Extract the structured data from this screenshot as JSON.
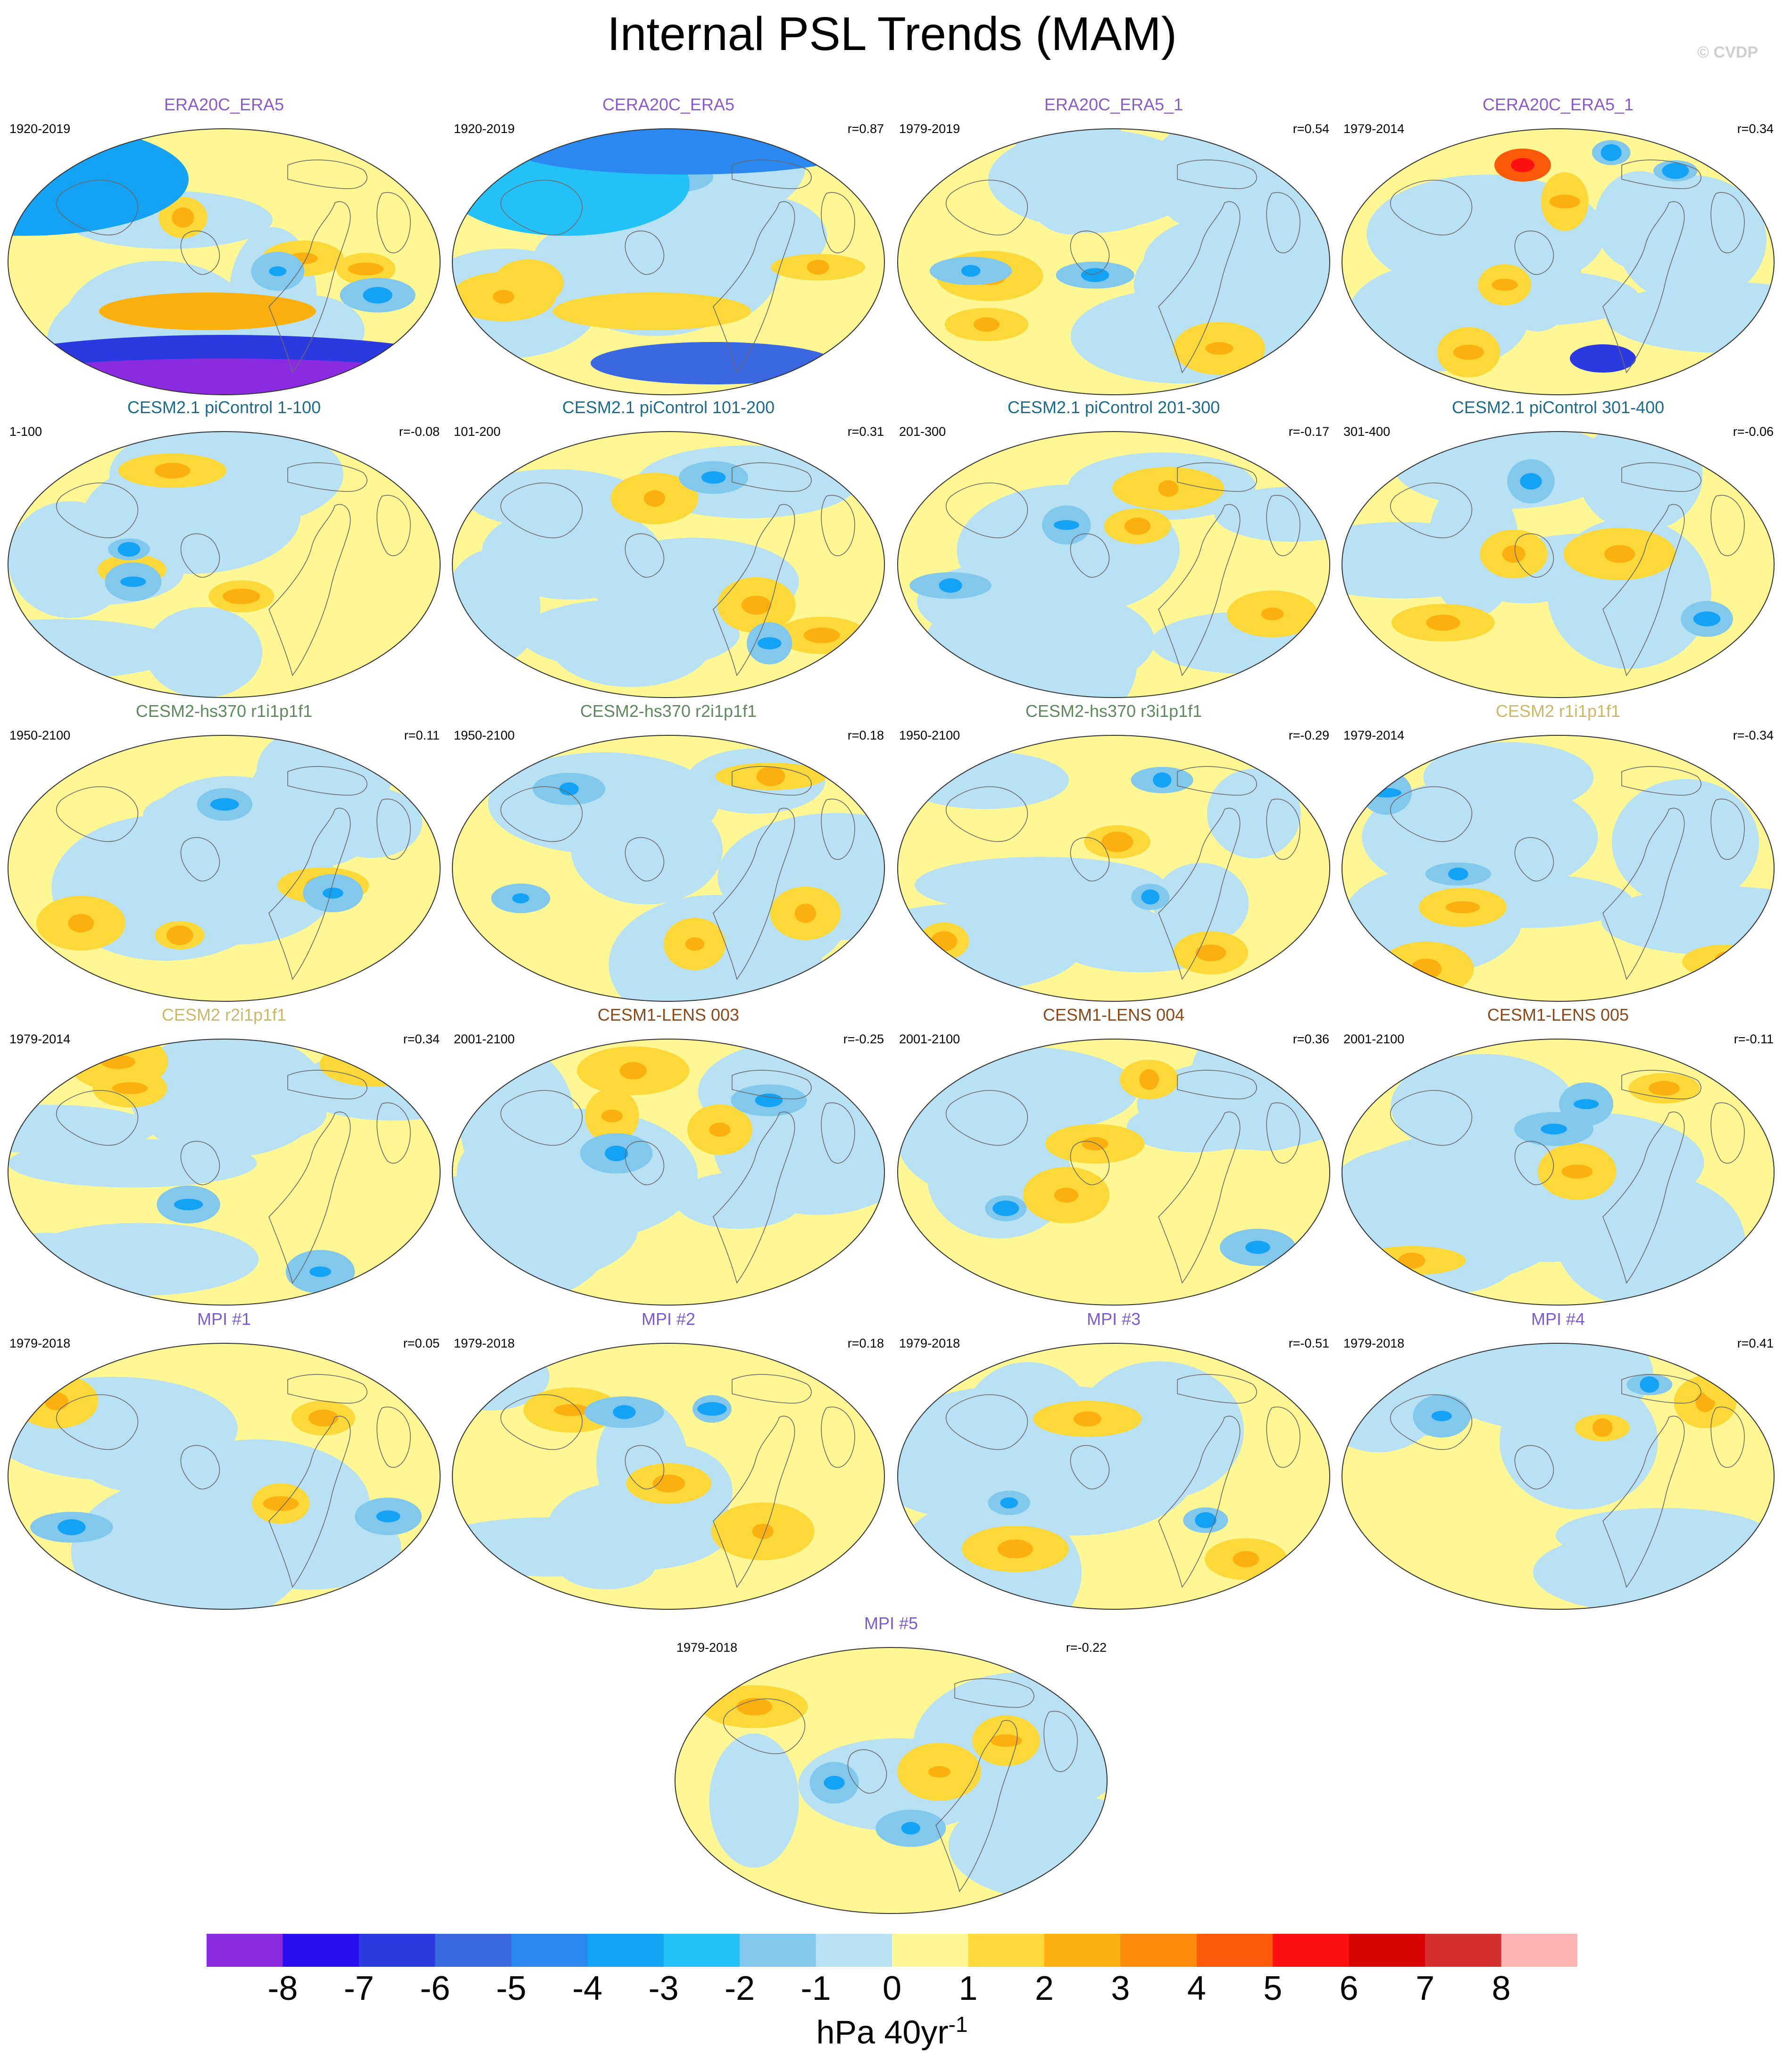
{
  "title": "Internal PSL Trends (MAM)",
  "copyright": "© CVDP",
  "colors": {
    "ERA": "#8a5cc9",
    "piControl": "#1c6b8a",
    "hs370": "#5c8a5c",
    "CESM2": "#c9b86a",
    "LENS": "#8a4a1c",
    "MPI": "#7c5cd6"
  },
  "chart_data": {
    "type": "map-grid",
    "panels": [
      {
        "name": "ERA20C_ERA5",
        "period": "1920-2019",
        "r": "",
        "group": "ERA",
        "icon": "1"
      },
      {
        "name": "CERA20C_ERA5",
        "period": "1920-2019",
        "r": "r=0.87",
        "group": "ERA",
        "icon": "2"
      },
      {
        "name": "ERA20C_ERA5_1",
        "period": "1979-2019",
        "r": "r=0.54",
        "group": "ERA",
        "icon": "3"
      },
      {
        "name": "CERA20C_ERA5_1",
        "period": "1979-2014",
        "r": "r=0.34",
        "group": "ERA",
        "icon": "4"
      },
      {
        "name": "CESM2.1 piControl 1-100",
        "period": "1-100",
        "r": "r=-0.08",
        "group": "piControl",
        "icon": "5"
      },
      {
        "name": "CESM2.1 piControl 101-200",
        "period": "101-200",
        "r": "r=0.31",
        "group": "piControl",
        "icon": "6"
      },
      {
        "name": "CESM2.1 piControl 201-300",
        "period": "201-300",
        "r": "r=-0.17",
        "group": "piControl",
        "icon": "7"
      },
      {
        "name": "CESM2.1 piControl 301-400",
        "period": "301-400",
        "r": "r=-0.06",
        "group": "piControl",
        "icon": "8"
      },
      {
        "name": "CESM2-hs370 r1i1p1f1",
        "period": "1950-2100",
        "r": "r=0.11",
        "group": "hs370",
        "icon": "9"
      },
      {
        "name": "CESM2-hs370 r2i1p1f1",
        "period": "1950-2100",
        "r": "r=0.18",
        "group": "hs370",
        "icon": "10"
      },
      {
        "name": "CESM2-hs370 r3i1p1f1",
        "period": "1950-2100",
        "r": "r=-0.29",
        "group": "hs370",
        "icon": "11"
      },
      {
        "name": "CESM2 r1i1p1f1",
        "period": "1979-2014",
        "r": "r=-0.34",
        "group": "CESM2",
        "icon": "12"
      },
      {
        "name": "CESM2 r2i1p1f1",
        "period": "1979-2014",
        "r": "r=0.34",
        "group": "CESM2",
        "icon": "13"
      },
      {
        "name": "CESM1-LENS 003",
        "period": "2001-2100",
        "r": "r=-0.25",
        "group": "LENS",
        "icon": "14"
      },
      {
        "name": "CESM1-LENS 004",
        "period": "2001-2100",
        "r": "r=0.36",
        "group": "LENS",
        "icon": "15"
      },
      {
        "name": "CESM1-LENS 005",
        "period": "2001-2100",
        "r": "r=-0.11",
        "group": "LENS",
        "icon": "16"
      },
      {
        "name": "MPI #1",
        "period": "1979-2018",
        "r": "r=0.05",
        "group": "MPI",
        "icon": "17"
      },
      {
        "name": "MPI #2",
        "period": "1979-2018",
        "r": "r=0.18",
        "group": "MPI",
        "icon": "18"
      },
      {
        "name": "MPI #3",
        "period": "1979-2018",
        "r": "r=-0.51",
        "group": "MPI",
        "icon": "19"
      },
      {
        "name": "MPI #4",
        "period": "1979-2018",
        "r": "r=0.41",
        "group": "MPI",
        "icon": "20"
      },
      {
        "name": "MPI #5",
        "period": "1979-2018",
        "r": "r=-0.22",
        "group": "MPI",
        "icon": "21"
      }
    ],
    "colorbar": {
      "colors": [
        "#8a2be2",
        "#2a10f0",
        "#2a3ae0",
        "#3a68e0",
        "#2a88f0",
        "#14a2f5",
        "#24c0f8",
        "#82c8ec",
        "#b8e2f4",
        "#fff694",
        "#fcd838",
        "#fcb010",
        "#fc8a0c",
        "#fc5a0a",
        "#fc1010",
        "#d80404",
        "#d43030",
        "#fcb4b4"
      ],
      "labels": [
        "-8",
        "-7",
        "-6",
        "-5",
        "-4",
        "-3",
        "-2",
        "-1",
        "0",
        "1",
        "2",
        "3",
        "4",
        "5",
        "6",
        "7",
        "8"
      ]
    },
    "units": "hPa 40yr",
    "units_sup": "-1"
  }
}
